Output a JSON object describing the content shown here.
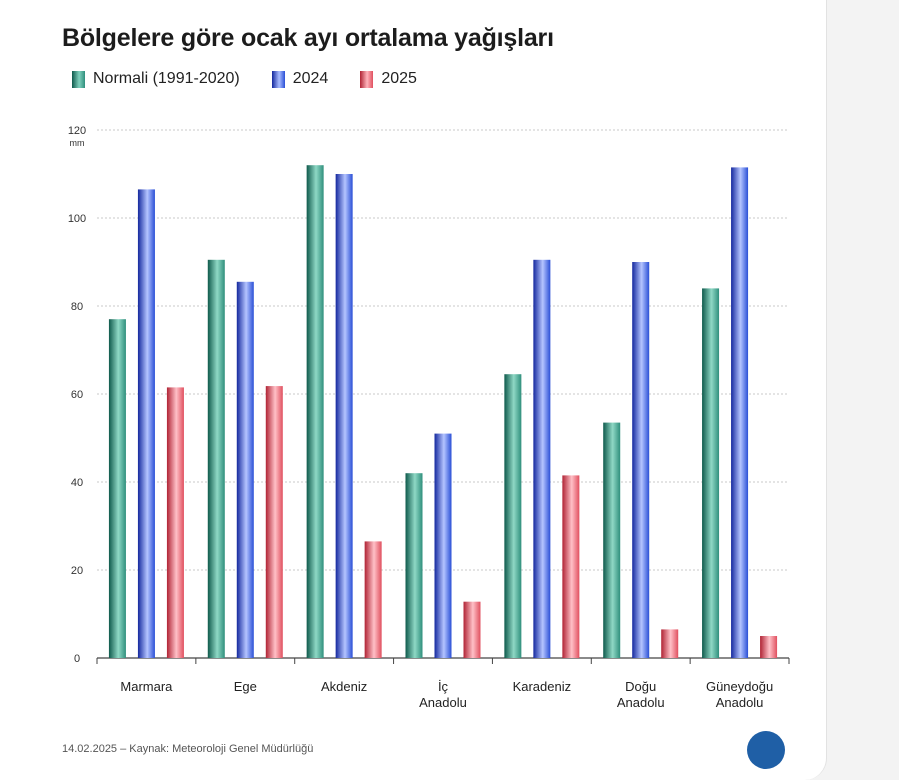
{
  "colors": {
    "normal": "#2f8f7c",
    "y2024": "#2a4fd6",
    "y2025": "#e0505f",
    "grid": "#c9c9c9",
    "axis": "#444444"
  },
  "chart_data": {
    "type": "bar",
    "title": "Bölgelere göre ocak ayı ortalama yağışları",
    "ylabel": "mm",
    "ylim": [
      0,
      120
    ],
    "yticks": [
      0,
      20,
      40,
      60,
      80,
      100,
      120
    ],
    "grid": true,
    "legend_position": "top-left",
    "categories": [
      [
        "Marmara"
      ],
      [
        "Ege"
      ],
      [
        "Akdeniz"
      ],
      [
        "İç",
        "Anadolu"
      ],
      [
        "Karadeniz"
      ],
      [
        "Doğu",
        "Anadolu"
      ],
      [
        "Güneydoğu",
        "Anadolu"
      ]
    ],
    "series": [
      {
        "name": "Normali (1991-2020)",
        "color_key": "normal",
        "values": [
          77,
          90.5,
          112,
          42,
          64.5,
          53.5,
          84
        ]
      },
      {
        "name": "2024",
        "color_key": "y2024",
        "values": [
          106.5,
          85.5,
          110,
          51,
          90.5,
          90,
          111.5
        ]
      },
      {
        "name": "2025",
        "color_key": "y2025",
        "values": [
          61.5,
          61.8,
          26.5,
          12.8,
          41.5,
          6.5,
          5
        ]
      }
    ]
  },
  "footer": {
    "text": "14.02.2025 – Kaynak: Meteoroloji Genel Müdürlüğü"
  }
}
